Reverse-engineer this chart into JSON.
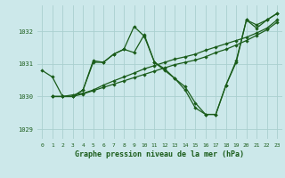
{
  "bg_color": "#cce8ea",
  "grid_color": "#aacfcf",
  "line_color": "#1a5c1a",
  "title": "Graphe pression niveau de la mer (hPa)",
  "xlim": [
    -0.5,
    23.5
  ],
  "ylim": [
    1028.7,
    1032.8
  ],
  "yticks": [
    1029,
    1030,
    1031,
    1032
  ],
  "xticks": [
    0,
    1,
    2,
    3,
    4,
    5,
    6,
    7,
    8,
    9,
    10,
    11,
    12,
    13,
    14,
    15,
    16,
    17,
    18,
    19,
    20,
    21,
    22,
    23
  ],
  "line1_x": [
    0,
    1,
    2,
    3,
    4,
    5,
    6,
    7,
    8,
    9,
    10,
    11,
    12,
    13,
    14,
    15,
    16,
    17,
    18,
    19,
    20,
    21,
    22,
    23
  ],
  "line1_y": [
    1030.8,
    1030.6,
    1030.0,
    1030.0,
    1030.2,
    1031.1,
    1031.05,
    1031.3,
    1031.45,
    1032.15,
    1031.85,
    1031.05,
    1030.8,
    1030.55,
    1030.2,
    1029.65,
    1029.45,
    1029.45,
    1030.35,
    1031.05,
    1032.35,
    1032.1,
    1032.35,
    1032.55
  ],
  "line2_x": [
    1,
    2,
    3,
    4,
    5,
    6,
    7,
    8,
    9,
    10,
    11,
    12,
    13,
    14,
    15,
    16,
    17,
    18,
    19,
    20,
    21,
    22,
    23
  ],
  "line2_y": [
    1030.0,
    1030.0,
    1030.0,
    1030.2,
    1031.05,
    1031.05,
    1031.3,
    1031.45,
    1031.35,
    1031.9,
    1031.05,
    1030.85,
    1030.55,
    1030.3,
    1029.8,
    1029.45,
    1029.45,
    1030.35,
    1031.1,
    1032.35,
    1032.2,
    1032.35,
    1032.55
  ],
  "line3_x": [
    1,
    2,
    3,
    4,
    5,
    6,
    7,
    8,
    9,
    10,
    11,
    12,
    13,
    14,
    15,
    16,
    17,
    18,
    19,
    20,
    21,
    22,
    23
  ],
  "line3_y": [
    1030.0,
    1030.0,
    1030.05,
    1030.1,
    1030.2,
    1030.35,
    1030.48,
    1030.6,
    1030.72,
    1030.85,
    1030.95,
    1031.05,
    1031.15,
    1031.22,
    1031.3,
    1031.42,
    1031.52,
    1031.62,
    1031.72,
    1031.82,
    1031.95,
    1032.1,
    1032.35
  ],
  "line4_x": [
    1,
    2,
    3,
    4,
    5,
    6,
    7,
    8,
    9,
    10,
    11,
    12,
    13,
    14,
    15,
    16,
    17,
    18,
    19,
    20,
    21,
    22,
    23
  ],
  "line4_y": [
    1030.0,
    1030.0,
    1030.0,
    1030.08,
    1030.18,
    1030.28,
    1030.38,
    1030.48,
    1030.58,
    1030.68,
    1030.78,
    1030.88,
    1030.98,
    1031.05,
    1031.12,
    1031.22,
    1031.35,
    1031.45,
    1031.58,
    1031.72,
    1031.88,
    1032.05,
    1032.28
  ]
}
